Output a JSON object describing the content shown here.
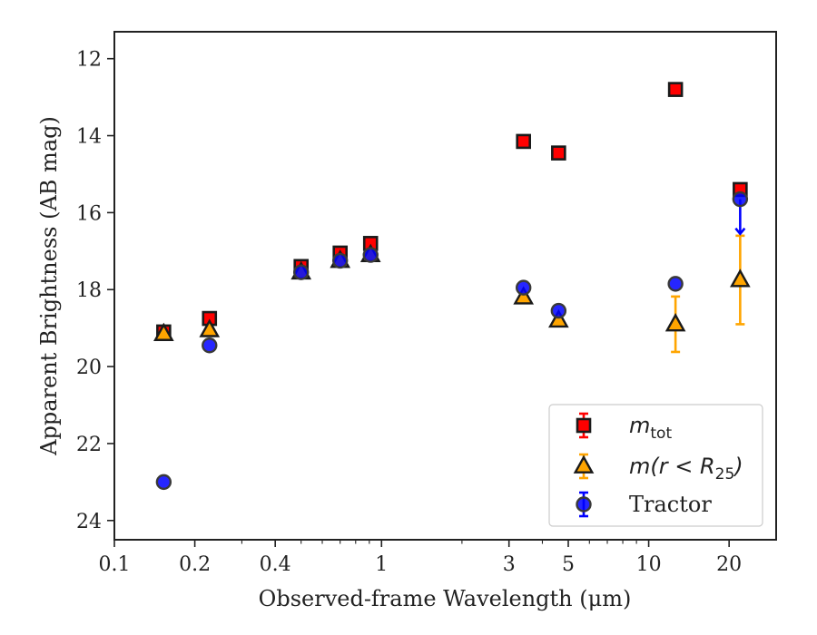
{
  "chart_data": {
    "type": "scatter",
    "xlabel": "Observed-frame Wavelength (μm)",
    "ylabel": "Apparent Brightness (AB mag)",
    "x_scale": "log",
    "xlim": [
      0.1,
      30
    ],
    "ylim": [
      24.5,
      11.3
    ],
    "y_inverted": true,
    "x_ticks": [
      0.1,
      0.2,
      0.4,
      1,
      3,
      5,
      10,
      20
    ],
    "x_tick_labels": [
      "0.1",
      "0.2",
      "0.4",
      "1",
      "3",
      "5",
      "10",
      "20"
    ],
    "y_ticks": [
      12,
      14,
      16,
      18,
      20,
      22,
      24
    ],
    "y_tick_labels": [
      "12",
      "14",
      "16",
      "18",
      "20",
      "22",
      "24"
    ],
    "grid": false,
    "legend_position": "lower-right",
    "series": [
      {
        "key": "mtot",
        "name": "m_tot",
        "marker": "square",
        "color": "#ff0000",
        "edge_color": "#1a1a1a",
        "points": [
          {
            "x": 0.153,
            "y": 19.1,
            "err": 0.05
          },
          {
            "x": 0.227,
            "y": 18.75,
            "err": 0.05
          },
          {
            "x": 0.5,
            "y": 17.4,
            "err": 0.05
          },
          {
            "x": 0.7,
            "y": 17.05,
            "err": 0.05
          },
          {
            "x": 0.91,
            "y": 16.8,
            "err": 0.05
          },
          {
            "x": 3.4,
            "y": 14.15,
            "err": 0.05
          },
          {
            "x": 4.6,
            "y": 14.45,
            "err": 0.05
          },
          {
            "x": 12.6,
            "y": 12.8,
            "err": 0.05
          },
          {
            "x": 22.0,
            "y": 15.4,
            "err": 0.05
          }
        ]
      },
      {
        "key": "mr25",
        "name_prefix": "m(r < R",
        "name_sub": "25",
        "name_suffix": ")",
        "marker": "triangle",
        "color": "#ffa500",
        "edge_color": "#1a1a1a",
        "points": [
          {
            "x": 0.153,
            "y": 19.15,
            "err": 0.05
          },
          {
            "x": 0.227,
            "y": 19.05,
            "err": 0.05
          },
          {
            "x": 0.5,
            "y": 17.55,
            "err": 0.05
          },
          {
            "x": 0.7,
            "y": 17.25,
            "err": 0.05
          },
          {
            "x": 0.91,
            "y": 17.1,
            "err": 0.05
          },
          {
            "x": 3.4,
            "y": 18.2,
            "err": 0.05
          },
          {
            "x": 4.6,
            "y": 18.8,
            "err": 0.05
          },
          {
            "x": 12.6,
            "y": 18.9,
            "err": 0.72
          },
          {
            "x": 22.0,
            "y": 17.75,
            "err": 1.15
          }
        ]
      },
      {
        "key": "tractor",
        "name": "Tractor",
        "marker": "circle",
        "color": "#0000ff",
        "edge_color": "#3a3a3a",
        "points": [
          {
            "x": 0.153,
            "y": 23.0,
            "err": 0.05
          },
          {
            "x": 0.227,
            "y": 19.45,
            "err": 0.05
          },
          {
            "x": 0.5,
            "y": 17.55,
            "err": 0.05
          },
          {
            "x": 0.7,
            "y": 17.25,
            "err": 0.05
          },
          {
            "x": 0.91,
            "y": 17.1,
            "err": 0.05
          },
          {
            "x": 3.4,
            "y": 17.95,
            "err": 0.05
          },
          {
            "x": 4.6,
            "y": 18.55,
            "err": 0.05
          },
          {
            "x": 12.6,
            "y": 17.85,
            "err": 0.05
          },
          {
            "x": 22.0,
            "y": 15.65,
            "upper_limit_to": 16.55,
            "err": 0.05
          }
        ]
      }
    ],
    "legend": [
      {
        "series": "mtot",
        "label_main": "m",
        "label_sub": "tot"
      },
      {
        "series": "mr25",
        "label_main": "m(r < R",
        "label_sub": "25",
        "label_tail": ")"
      },
      {
        "series": "tractor",
        "label_main": "Tractor"
      }
    ]
  }
}
